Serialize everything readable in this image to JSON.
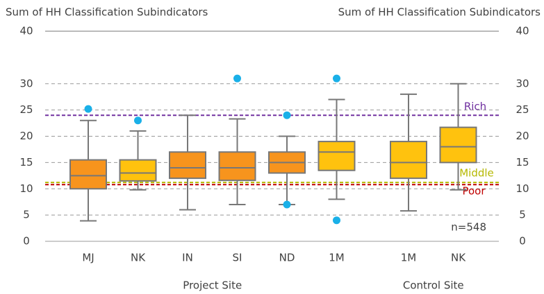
{
  "chart_data": {
    "type": "box",
    "y_label": "Sum of HH Classification Subindicators",
    "y2_label": "Sum of HH Classification Subindicators",
    "categories": [
      "MJ",
      "NK",
      "IN",
      "SI",
      "ND",
      "1M",
      "1M",
      "NK"
    ],
    "groups": [
      {
        "name": "Project Site",
        "count": 6
      },
      {
        "name": "Control Site",
        "count": 2
      }
    ],
    "colors": [
      "#f7941d",
      "#ffc20e",
      "#f7941d",
      "#f7941d",
      "#f7941d",
      "#ffc20e",
      "#ffc20e",
      "#ffc20e"
    ],
    "outlier_color": "#1ab0e8",
    "boxes": [
      {
        "min": 3.9,
        "q1": 10,
        "median": 12.5,
        "q3": 15.5,
        "max": 23,
        "outliers": [
          25.2
        ]
      },
      {
        "min": 9.8,
        "q1": 11.5,
        "median": 13,
        "q3": 15.5,
        "max": 21,
        "outliers": [
          23
        ]
      },
      {
        "min": 6,
        "q1": 12,
        "median": 14,
        "q3": 17,
        "max": 24,
        "outliers": []
      },
      {
        "min": 7,
        "q1": 11.6,
        "median": 14,
        "q3": 17,
        "max": 23.3,
        "outliers": [
          31
        ]
      },
      {
        "min": 7,
        "q1": 13,
        "median": 15,
        "q3": 17,
        "max": 20,
        "outliers": [
          24,
          7
        ]
      },
      {
        "min": 8,
        "q1": 13.5,
        "median": 17,
        "q3": 19,
        "max": 27,
        "outliers": [
          31,
          4
        ]
      },
      {
        "min": 5.8,
        "q1": 12,
        "median": 15,
        "q3": 19,
        "max": 28,
        "outliers": []
      },
      {
        "min": 9.8,
        "q1": 15,
        "median": 18,
        "q3": 21.7,
        "max": 30,
        "outliers": []
      }
    ],
    "reference_lines": [
      {
        "label": "Rich",
        "value": 24,
        "color": "#7030a0"
      },
      {
        "label": "Middle",
        "value": 11.2,
        "color": "#b5b800"
      },
      {
        "label": "Poor",
        "value": 10.8,
        "color": "#c00000"
      }
    ],
    "annotation": "n=548",
    "ylim": [
      0,
      40
    ],
    "yticks": [
      0,
      5,
      10,
      15,
      20,
      25,
      30,
      40
    ],
    "y2lim": [
      0,
      40
    ],
    "y2ticks": [
      0,
      5,
      10,
      15,
      20,
      25,
      30,
      40
    ],
    "grid": true
  }
}
